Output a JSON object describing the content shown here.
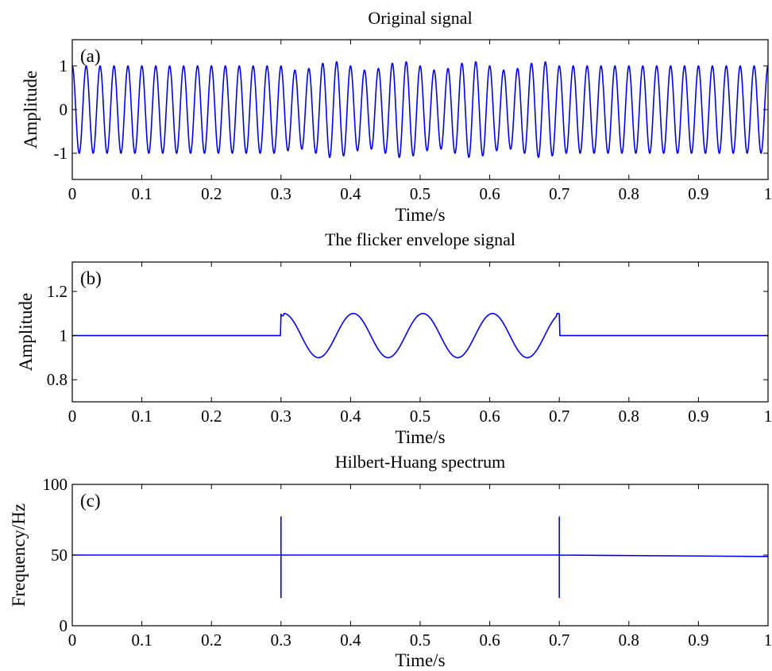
{
  "chart_data": [
    {
      "type": "line",
      "panel_label": "(a)",
      "title": "Original signal",
      "xlabel": "Time/s",
      "ylabel": "Amplitude",
      "xlim": [
        0,
        1
      ],
      "ylim": [
        -1.6,
        1.6
      ],
      "xticks": [
        0,
        0.1,
        0.2,
        0.3,
        0.4,
        0.5,
        0.6,
        0.7,
        0.8,
        0.9,
        1
      ],
      "xtick_labels": [
        "0",
        "0.1",
        "0.2",
        "0.3",
        "0.4",
        "0.5",
        "0.6",
        "0.7",
        "0.8",
        "0.9",
        "1"
      ],
      "yticks": [
        -1,
        0,
        1
      ],
      "ytick_labels": [
        "-1",
        "0",
        "1"
      ],
      "line_color": "#0000ff",
      "signal": {
        "carrier_hz": 50,
        "base_amplitude": 1.0,
        "modulated_interval": [
          0.3,
          0.7
        ],
        "modulation_depth": 0.1,
        "modulation_hz": 10,
        "x": [
          0,
          0.05,
          0.1,
          0.15,
          0.2,
          0.25,
          0.3,
          0.35,
          0.4,
          0.45,
          0.5,
          0.55,
          0.6,
          0.65,
          0.7,
          0.75,
          0.8,
          0.85,
          0.9,
          0.95,
          1.0
        ],
        "envelope": [
          1.0,
          1.0,
          1.0,
          1.0,
          1.0,
          1.0,
          1.0,
          0.9,
          1.1,
          0.9,
          1.1,
          0.9,
          1.1,
          0.9,
          1.0,
          1.0,
          1.0,
          1.0,
          1.0,
          1.0,
          1.0
        ]
      }
    },
    {
      "type": "line",
      "panel_label": "(b)",
      "title": "The flicker envelope signal",
      "xlabel": "Time/s",
      "ylabel": "Amplitude",
      "xlim": [
        0,
        1
      ],
      "ylim": [
        0.7,
        1.333
      ],
      "xticks": [
        0,
        0.1,
        0.2,
        0.3,
        0.4,
        0.5,
        0.6,
        0.7,
        0.8,
        0.9,
        1
      ],
      "xtick_labels": [
        "0",
        "0.1",
        "0.2",
        "0.3",
        "0.4",
        "0.5",
        "0.6",
        "0.7",
        "0.8",
        "0.9",
        "1"
      ],
      "yticks": [
        0.8,
        1.0,
        1.2
      ],
      "ytick_labels": [
        "0.8",
        "1",
        "1.2"
      ],
      "line_color": "#0000ff",
      "x": [
        0,
        0.3,
        0.3,
        0.35,
        0.4,
        0.45,
        0.5,
        0.55,
        0.6,
        0.65,
        0.7,
        0.7,
        1.0
      ],
      "values": [
        1.0,
        1.0,
        1.09,
        0.9,
        1.1,
        0.9,
        1.1,
        0.9,
        1.1,
        0.9,
        1.1,
        1.0,
        1.0
      ]
    },
    {
      "type": "line",
      "panel_label": "(c)",
      "title": "Hilbert-Huang spectrum",
      "xlabel": "Time/s",
      "ylabel": "Frequency/Hz",
      "xlim": [
        0,
        1
      ],
      "ylim": [
        0,
        100
      ],
      "xticks": [
        0,
        0.1,
        0.2,
        0.3,
        0.4,
        0.5,
        0.6,
        0.7,
        0.8,
        0.9,
        1
      ],
      "xtick_labels": [
        "0",
        "0.1",
        "0.2",
        "0.3",
        "0.4",
        "0.5",
        "0.6",
        "0.7",
        "0.8",
        "0.9",
        "1"
      ],
      "yticks": [
        0,
        50,
        100
      ],
      "ytick_labels": [
        "0",
        "50",
        "100"
      ],
      "line_color": "#0000ff",
      "x": [
        0,
        0.3,
        0.3,
        0.3,
        0.3,
        0.7,
        0.7,
        0.7,
        0.7,
        1.0
      ],
      "values": [
        50,
        50,
        77,
        20,
        50,
        50,
        77,
        20,
        50,
        49
      ]
    }
  ]
}
